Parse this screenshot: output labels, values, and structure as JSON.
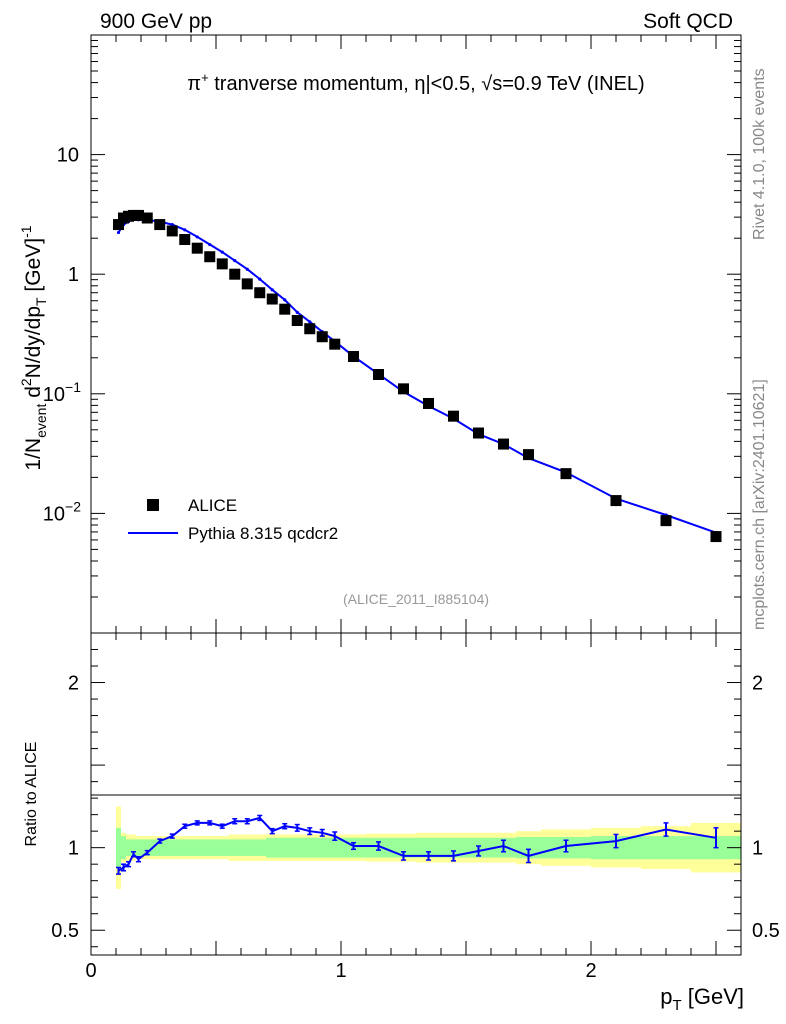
{
  "header": {
    "left": "900 GeV pp",
    "right": "Soft QCD"
  },
  "side_labels": {
    "rivet": "Rivet 4.1.0,  100k events",
    "mcplots": "mcplots.cern.ch [arXiv:2401.10621]"
  },
  "plot_title": {
    "pi": "π",
    "charge": "+",
    "text1": " tranverse momentum, ",
    "eta": "η",
    "text2": "|<0.5, ",
    "sqrt": "√",
    "text3": "s=0.9 TeV (INEL)"
  },
  "watermark": "(ALICE_2011_I885104)",
  "ylabel_main": {
    "p1": "1/N",
    "sub1": "event",
    "p2": " d",
    "sup1": "2",
    "p3": "N/dy/dp",
    "sub2": "T",
    "p4": " [GeV]",
    "sup2": "-1"
  },
  "ylabel_ratio": "Ratio to ALICE",
  "xlabel": {
    "p": "p",
    "sub": "T",
    "unit": " [GeV]"
  },
  "legend": {
    "data": "ALICE",
    "mc": "Pythia 8.315 qcdcr2"
  },
  "colors": {
    "mc": "#0000ff",
    "data": "#000000",
    "band_inner": "#99ff99",
    "band_outer": "#ffff99"
  },
  "chart_data": {
    "type": "scatter",
    "main": {
      "yscale": "log",
      "ylim": [
        0.001,
        100
      ],
      "xlim": [
        0,
        2.6
      ],
      "y_ticks": [
        {
          "label": "10",
          "value": 10
        },
        {
          "label": "1",
          "value": 1
        },
        {
          "label": "10",
          "exp": "−1",
          "value": 0.1
        },
        {
          "label": "10",
          "exp": "−2",
          "value": 0.01
        }
      ]
    },
    "ratio": {
      "ylim": [
        0.35,
        2.3
      ],
      "y_ticks": [
        {
          "label": "0.5",
          "value": 0.5
        },
        {
          "label": "1",
          "value": 1
        },
        {
          "label": "2",
          "value": 2
        }
      ]
    },
    "x_ticks": [
      {
        "label": "0",
        "value": 0
      },
      {
        "label": "1",
        "value": 1
      },
      {
        "label": "2",
        "value": 2
      }
    ],
    "bins_edges": [
      0.1,
      0.12,
      0.14,
      0.16,
      0.18,
      0.2,
      0.25,
      0.3,
      0.35,
      0.4,
      0.45,
      0.5,
      0.55,
      0.6,
      0.65,
      0.7,
      0.75,
      0.8,
      0.85,
      0.9,
      0.95,
      1.0,
      1.1,
      1.2,
      1.3,
      1.4,
      1.5,
      1.6,
      1.7,
      1.8,
      2.0,
      2.2,
      2.4,
      2.6
    ],
    "x": [
      0.11,
      0.13,
      0.15,
      0.17,
      0.19,
      0.225,
      0.275,
      0.325,
      0.375,
      0.425,
      0.475,
      0.525,
      0.575,
      0.625,
      0.675,
      0.725,
      0.775,
      0.825,
      0.875,
      0.925,
      0.975,
      1.05,
      1.15,
      1.25,
      1.35,
      1.45,
      1.55,
      1.65,
      1.75,
      1.9,
      2.1,
      2.3,
      2.5
    ],
    "series": [
      {
        "name": "ALICE",
        "values": [
          2.6,
          2.95,
          3.05,
          3.1,
          3.1,
          2.95,
          2.6,
          2.3,
          1.95,
          1.65,
          1.4,
          1.22,
          1.0,
          0.83,
          0.7,
          0.62,
          0.51,
          0.41,
          0.35,
          0.3,
          0.26,
          0.205,
          0.145,
          0.11,
          0.083,
          0.065,
          0.047,
          0.038,
          0.031,
          0.0215,
          0.0128,
          0.0087,
          0.0064
        ]
      },
      {
        "name": "Pythia 8.315 qcdcr2",
        "values": [
          2.23,
          2.6,
          2.75,
          2.95,
          2.85,
          2.85,
          2.75,
          2.6,
          2.35,
          2.05,
          1.77,
          1.53,
          1.3,
          1.1,
          0.91,
          0.74,
          0.61,
          0.48,
          0.4,
          0.33,
          0.275,
          0.206,
          0.146,
          0.104,
          0.079,
          0.062,
          0.046,
          0.038,
          0.029,
          0.022,
          0.0133,
          0.0097,
          0.0069
        ]
      }
    ],
    "ratio_values": [
      0.86,
      0.88,
      0.9,
      0.96,
      0.93,
      0.97,
      1.04,
      1.07,
      1.13,
      1.15,
      1.15,
      1.13,
      1.16,
      1.16,
      1.18,
      1.1,
      1.13,
      1.12,
      1.1,
      1.09,
      1.07,
      1.01,
      1.01,
      0.95,
      0.95,
      0.95,
      0.98,
      1.01,
      0.95,
      1.01,
      1.04,
      1.11,
      1.06
    ],
    "ratio_errors": [
      0.02,
      0.02,
      0.015,
      0.015,
      0.015,
      0.012,
      0.012,
      0.012,
      0.012,
      0.012,
      0.012,
      0.012,
      0.015,
      0.015,
      0.015,
      0.015,
      0.015,
      0.02,
      0.02,
      0.02,
      0.025,
      0.02,
      0.025,
      0.025,
      0.025,
      0.03,
      0.03,
      0.035,
      0.04,
      0.035,
      0.04,
      0.04,
      0.06
    ],
    "band_inner": [
      0.12,
      0.07,
      0.05,
      0.05,
      0.05,
      0.05,
      0.05,
      0.05,
      0.05,
      0.05,
      0.05,
      0.05,
      0.05,
      0.05,
      0.05,
      0.06,
      0.06,
      0.06,
      0.06,
      0.06,
      0.06,
      0.06,
      0.06,
      0.06,
      0.06,
      0.06,
      0.06,
      0.06,
      0.065,
      0.065,
      0.07,
      0.07,
      0.07
    ],
    "band_outer": [
      0.25,
      0.09,
      0.08,
      0.08,
      0.07,
      0.07,
      0.07,
      0.07,
      0.07,
      0.07,
      0.07,
      0.07,
      0.08,
      0.08,
      0.08,
      0.08,
      0.08,
      0.08,
      0.08,
      0.08,
      0.08,
      0.08,
      0.085,
      0.085,
      0.09,
      0.09,
      0.09,
      0.09,
      0.1,
      0.11,
      0.12,
      0.13,
      0.15
    ]
  }
}
